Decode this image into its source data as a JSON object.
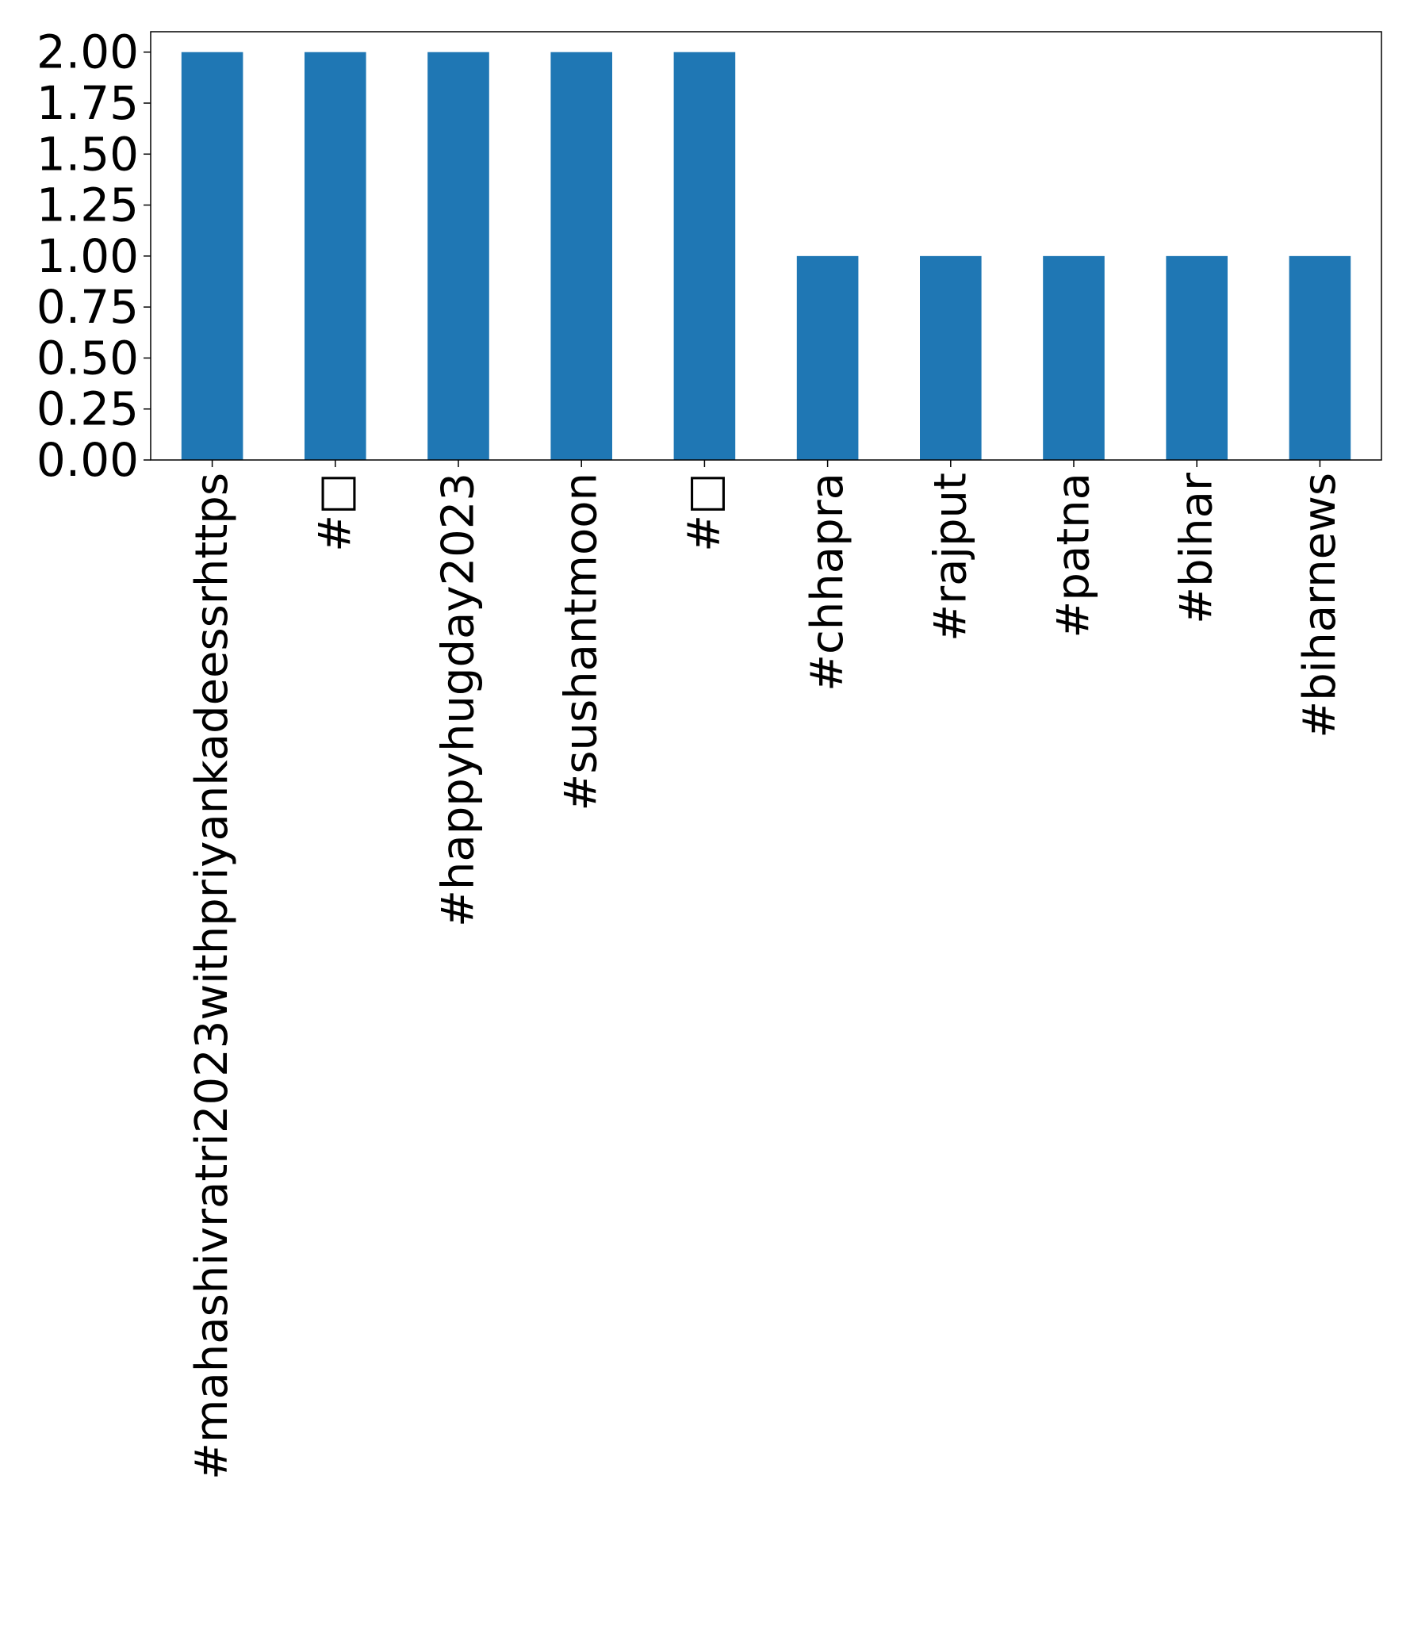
{
  "chart_data": {
    "type": "bar",
    "title": "",
    "xlabel": "",
    "ylabel": "",
    "categories": [
      "#mahashivratri2023withpriyankadeessrhttps",
      "#□",
      "#happyhugday2023",
      "#sushantmoon",
      "#□",
      "#chhapra",
      "#rajput",
      "#patna",
      "#bihar",
      "#biharnews"
    ],
    "values": [
      2,
      2,
      2,
      2,
      2,
      1,
      1,
      1,
      1,
      1
    ],
    "ylim": [
      0,
      2.1
    ],
    "yticks": [
      "0.00",
      "0.25",
      "0.50",
      "0.75",
      "1.00",
      "1.25",
      "1.50",
      "1.75",
      "2.00"
    ],
    "bar_color": "#1f77b4",
    "grid": false,
    "legend": "none"
  }
}
